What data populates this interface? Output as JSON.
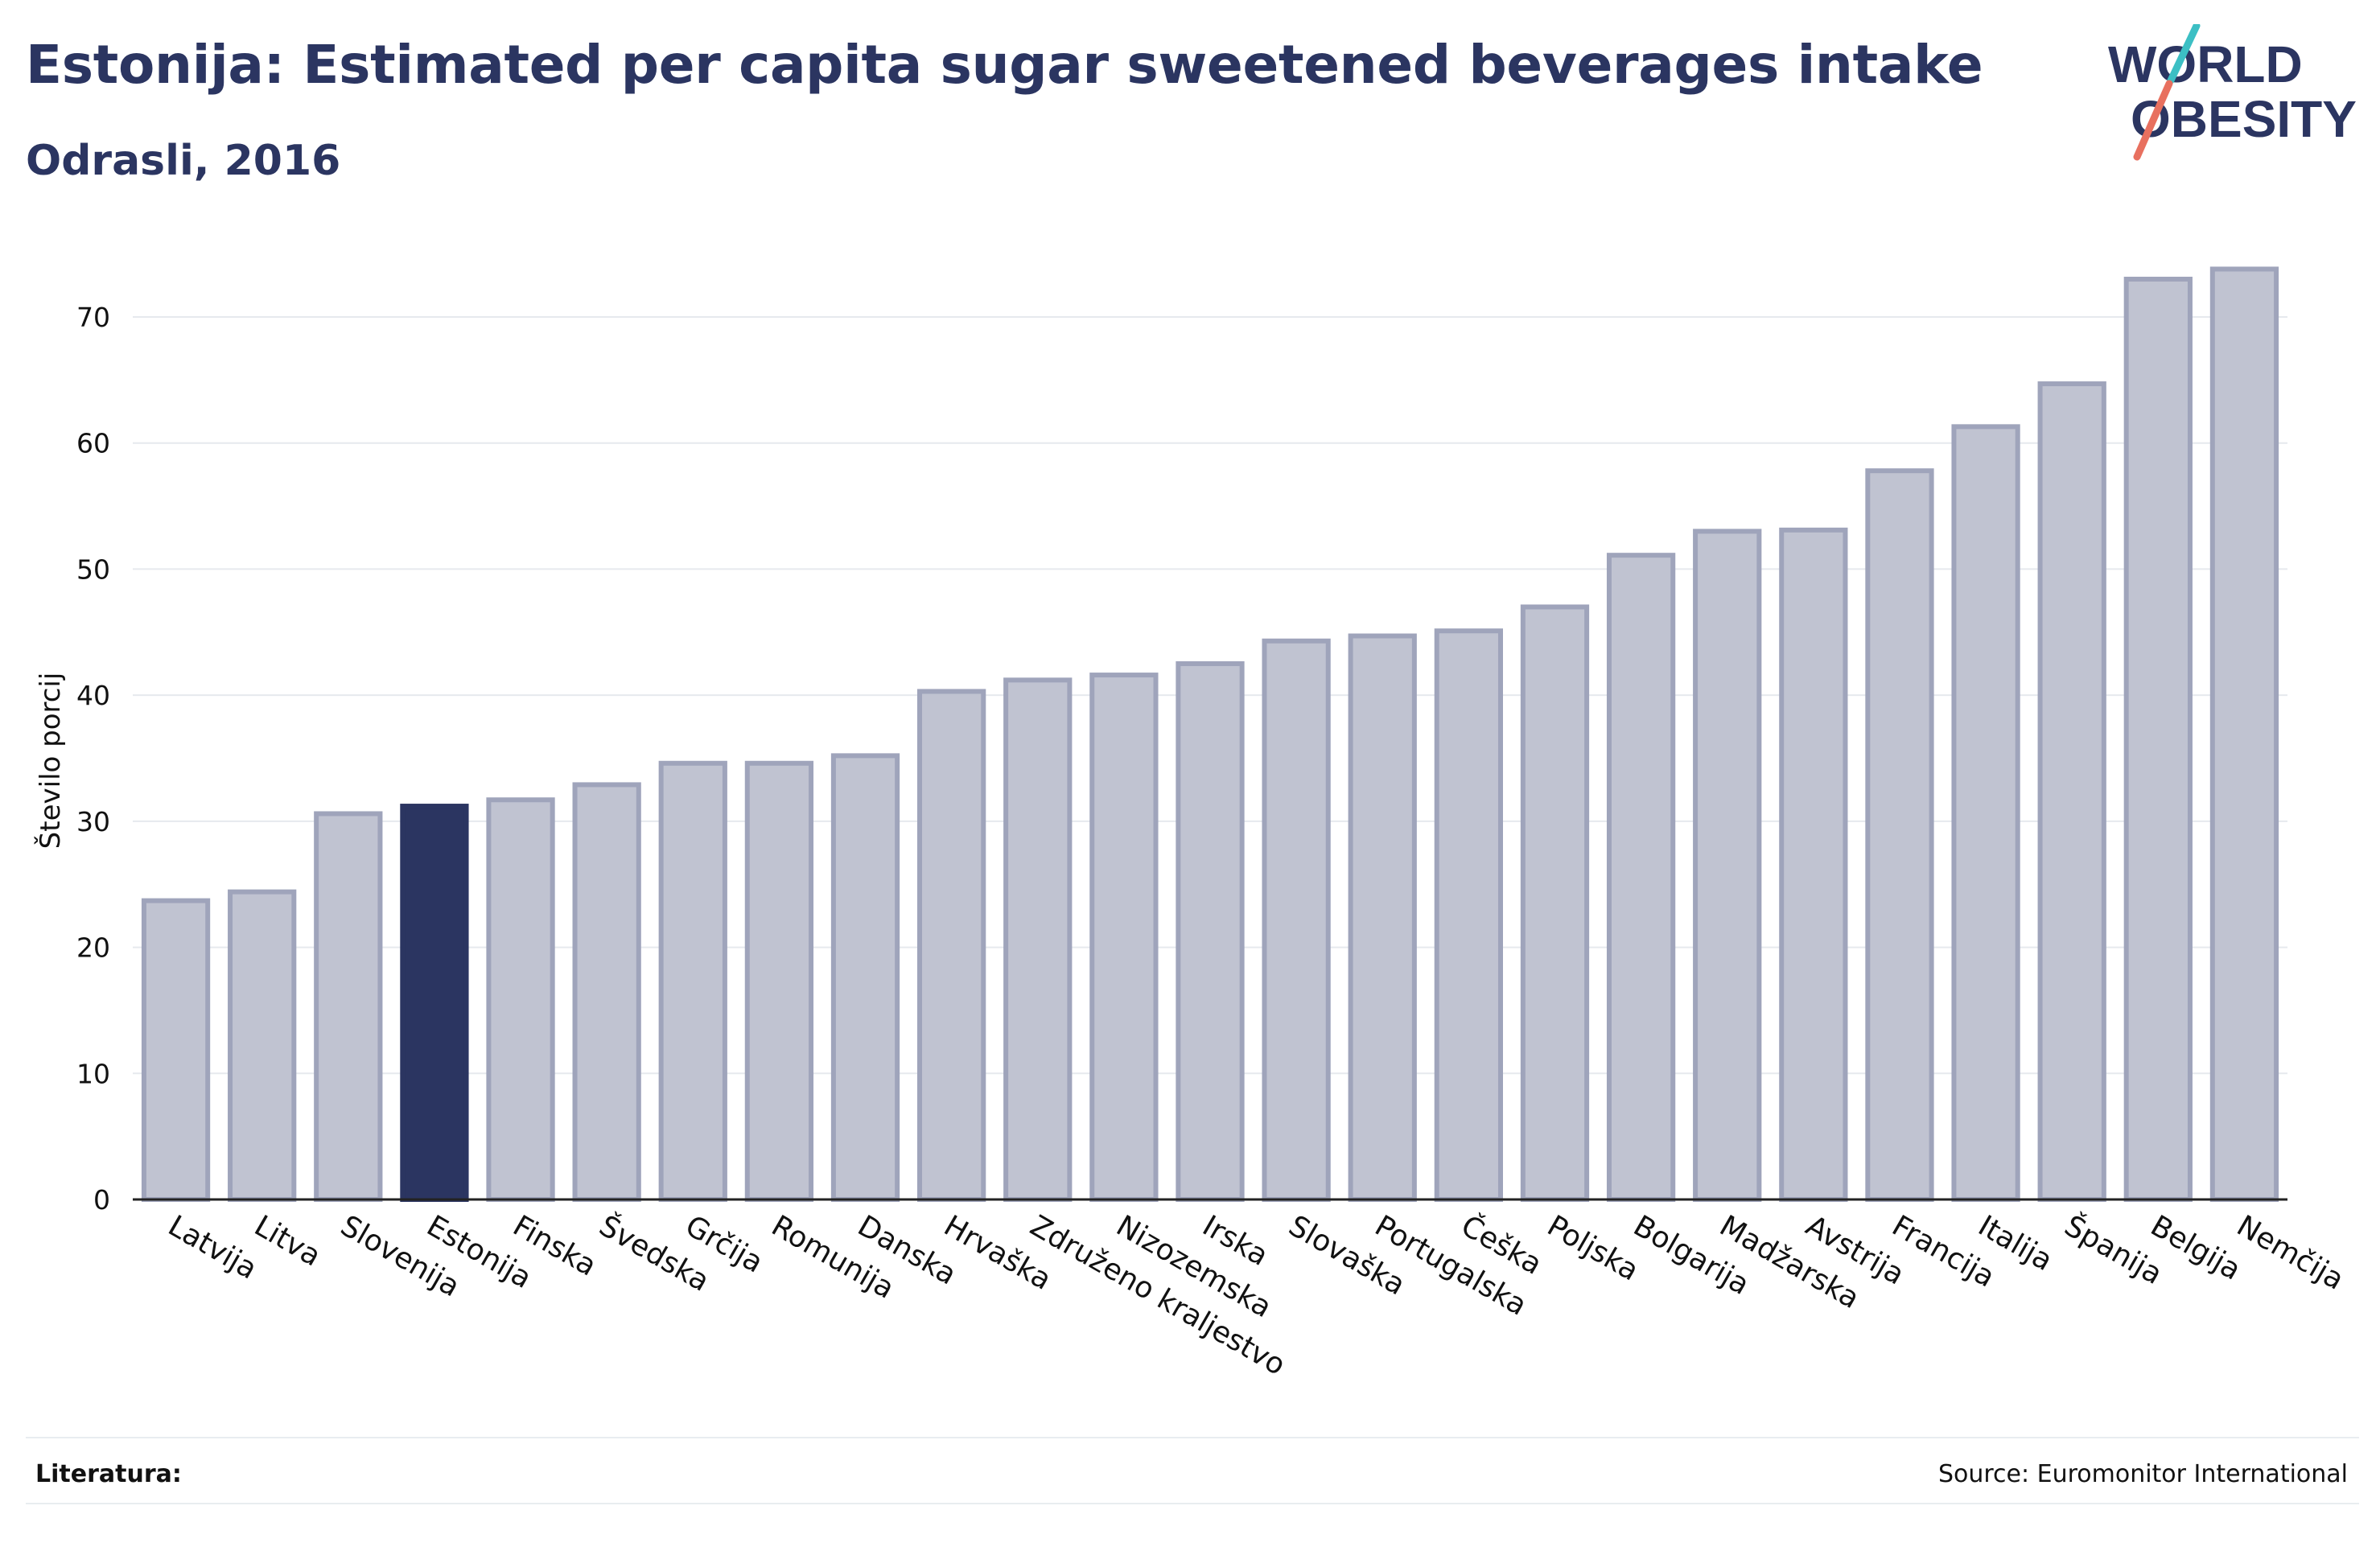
{
  "title": "Estonija: Estimated per capita sugar sweetened beverages intake",
  "subtitle": "Odrasli, 2016",
  "logo": {
    "line1": "WORLD",
    "line2": "OBESITY"
  },
  "footer": {
    "left_label": "Literatura:",
    "source": "Source: Euromonitor International"
  },
  "colors": {
    "bar": "#c0c3d1",
    "bar_border": "#9fa4bb",
    "highlight": "#2b3561",
    "text": "#2b3561",
    "logo_teal": "#3cbfc4",
    "logo_coral": "#e8705f"
  },
  "chart_data": {
    "type": "bar",
    "title": "",
    "xlabel": "",
    "ylabel": "Število porcij",
    "ylim": [
      0,
      75
    ],
    "yticks": [
      0,
      10,
      20,
      30,
      40,
      50,
      60,
      70
    ],
    "grid": true,
    "highlight": "Estonija",
    "categories": [
      "Latvija",
      "Litva",
      "Slovenija",
      "Estonija",
      "Finska",
      "Švedska",
      "Grčija",
      "Romunija",
      "Danska",
      "Hrvaška",
      "Združeno kraljestvo",
      "Nizozemska",
      "Irska",
      "Slovaška",
      "Portugalska",
      "Češka",
      "Poljska",
      "Bolgarija",
      "Madžarska",
      "Avstrija",
      "Francija",
      "Italija",
      "Španija",
      "Belgija",
      "Nemčija"
    ],
    "values": [
      23.7,
      24.4,
      30.6,
      31.2,
      31.7,
      32.9,
      34.6,
      34.6,
      35.2,
      40.3,
      41.2,
      41.6,
      42.5,
      44.3,
      44.7,
      45.1,
      47.0,
      51.1,
      53.0,
      53.1,
      57.8,
      61.3,
      64.7,
      73.0,
      73.8
    ]
  }
}
